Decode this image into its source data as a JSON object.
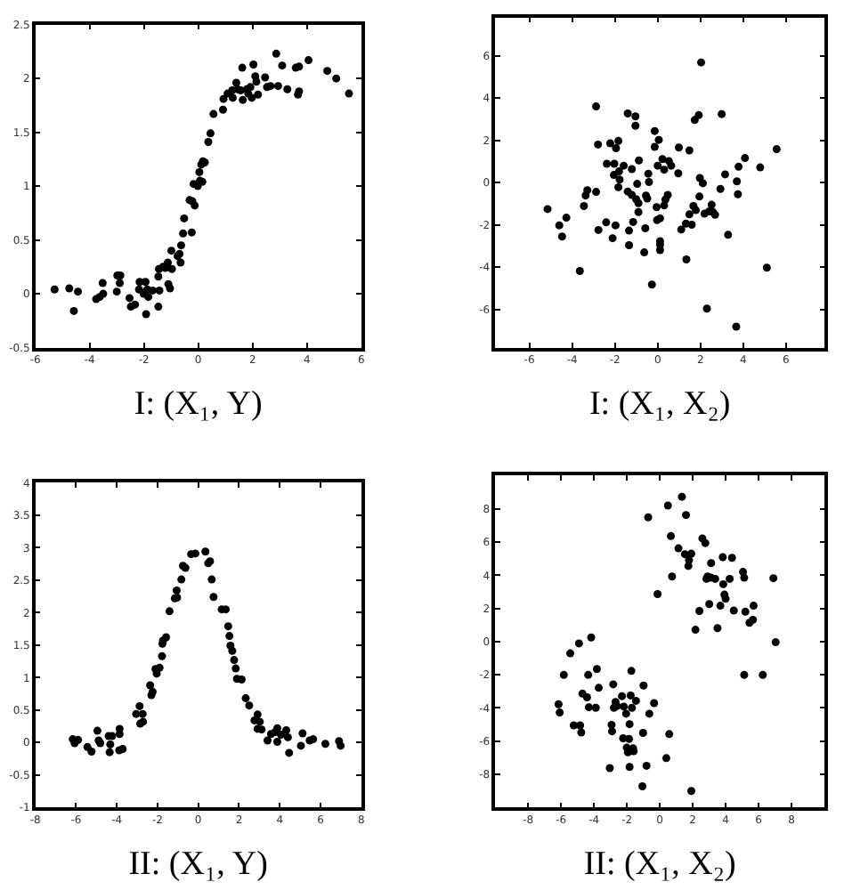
{
  "chart_data": [
    {
      "type": "scatter",
      "xlabel": "I: (X₁, Y)",
      "marker": "circle",
      "color": "#000000",
      "grid": false,
      "xlim": [
        -6,
        6
      ],
      "ylim": [
        -0.5,
        2.5
      ],
      "xticks": [
        -6,
        -4,
        -2,
        0,
        2,
        4,
        6
      ],
      "yticks": [
        -0.5,
        0,
        0.5,
        1,
        1.5,
        2,
        2.5
      ],
      "x": [
        -5.29,
        -4.75,
        -4.58,
        -4.43,
        -3.76,
        -3.63,
        -3.5,
        -3.52,
        -3.0,
        -2.98,
        -2.87,
        -2.89,
        -2.53,
        -2.48,
        -2.33,
        -2.18,
        -2.16,
        -2.01,
        -1.94,
        -1.92,
        -1.84,
        -1.88,
        -1.68,
        -1.47,
        -1.43,
        -1.47,
        -1.45,
        -1.3,
        -1.21,
        -1.12,
        -1.1,
        -1.04,
        -0.97,
        -0.99,
        -0.76,
        -0.65,
        -0.69,
        -0.63,
        -0.56,
        -0.52,
        -0.24,
        -0.32,
        -0.22,
        -0.17,
        -0.13,
        -0.02,
        0.06,
        0.15,
        0.04,
        0.11,
        0.17,
        0.24,
        0.37,
        0.45,
        0.56,
        0.91,
        0.93,
        1.08,
        1.25,
        1.27,
        1.4,
        1.45,
        1.56,
        1.62,
        1.64,
        1.79,
        1.84,
        1.92,
        1.97,
        2.03,
        2.1,
        2.14,
        2.2,
        2.46,
        2.53,
        2.66,
        2.87,
        2.94,
        3.09,
        3.28,
        3.59,
        3.71,
        3.67,
        3.71,
        4.06,
        4.75,
        5.08,
        5.55
      ],
      "values": [
        0.04,
        0.05,
        -0.16,
        0.02,
        -0.05,
        -0.03,
        0,
        0.1,
        0.02,
        0.17,
        0.17,
        0.1,
        -0.04,
        -0.12,
        -0.1,
        0.04,
        0.11,
        0,
        0.11,
        -0.19,
        -0.03,
        0.04,
        0.03,
        -0.12,
        0.03,
        0.16,
        0.23,
        0.25,
        0.24,
        0.29,
        0.09,
        0.05,
        0.23,
        0.4,
        0.35,
        0.29,
        0.37,
        0.45,
        0.56,
        0.7,
        0.57,
        0.87,
        0.86,
        1.02,
        0.82,
        1.0,
        1.05,
        1.04,
        1.13,
        1.2,
        1.23,
        1.22,
        1.41,
        1.49,
        1.67,
        1.71,
        1.81,
        1.86,
        1.89,
        1.82,
        1.96,
        1.9,
        1.89,
        2.1,
        1.8,
        1.9,
        1.86,
        1.92,
        1.82,
        2.13,
        2.02,
        1.97,
        1.85,
        2.01,
        1.92,
        1.93,
        2.23,
        1.93,
        2.12,
        1.9,
        2.1,
        2.11,
        1.85,
        1.88,
        2.17,
        2.07,
        2.0,
        1.86
      ]
    },
    {
      "type": "scatter",
      "xlabel": "I: (X₁, X₂)",
      "marker": "circle",
      "color": "#000000",
      "grid": false,
      "xlim": [
        -7.6,
        7.8
      ],
      "ylim": [
        -7.8,
        7.8
      ],
      "xticks": [
        -6,
        -4,
        -2,
        0,
        2,
        4,
        6
      ],
      "yticks": [
        -6,
        -4,
        -2,
        0,
        2,
        4,
        6
      ],
      "x": [
        -5.15,
        -4.6,
        -4.47,
        -4.27,
        -3.64,
        -3.45,
        -3.37,
        -3.29,
        -2.88,
        -2.88,
        -2.79,
        -2.77,
        -2.41,
        -2.38,
        -2.22,
        -2.11,
        -2.05,
        -2.03,
        -1.97,
        -1.95,
        -1.84,
        -1.81,
        -1.84,
        -1.78,
        -1.59,
        -1.4,
        -1.4,
        -1.34,
        -1.34,
        -1.21,
        -1.21,
        -1.15,
        -1.04,
        -1.04,
        -1.01,
        -0.96,
        -0.9,
        -0.88,
        -0.9,
        -0.63,
        -0.58,
        -0.55,
        -0.49,
        -0.41,
        -0.44,
        -0.27,
        -0.14,
        -0.14,
        -0.05,
        -0.03,
        0,
        0.05,
        0.11,
        0.11,
        0.11,
        0.11,
        0.22,
        0.3,
        0.3,
        0.36,
        0.47,
        0.52,
        0.63,
        0.96,
        0.99,
        1.1,
        1.32,
        1.34,
        1.48,
        1.48,
        1.59,
        1.67,
        1.73,
        1.78,
        1.92,
        1.95,
        1.97,
        2.03,
        2.11,
        2.19,
        2.3,
        2.41,
        2.52,
        2.58,
        2.68,
        2.93,
        2.99,
        3.15,
        3.29,
        3.7,
        3.75,
        3.78,
        3.67,
        4.08,
        4.79,
        5.1,
        5.56
      ],
      "values": [
        -1.25,
        -2.02,
        -2.55,
        -1.66,
        -4.18,
        -1.11,
        -0.61,
        -0.36,
        3.6,
        -0.44,
        1.8,
        -2.24,
        -1.88,
        0.89,
        1.86,
        -2.63,
        0.36,
        0.89,
        -2.02,
        1.63,
        1.97,
        0.53,
        -0.22,
        0.14,
        0.8,
        3.27,
        -0.42,
        -2.96,
        -2.27,
        0.64,
        -0.58,
        -1.86,
        3.13,
        2.69,
        -0.78,
        -0.06,
        -0.97,
        1.05,
        -1.39,
        -3.3,
        -2.16,
        -0.61,
        -0.75,
        0.03,
        0.42,
        -4.82,
        2.44,
        1.69,
        -1.16,
        -1.77,
        0.8,
        2.02,
        -1.69,
        -2.77,
        -2.94,
        -3.19,
        1.11,
        0.61,
        -1.08,
        -0.8,
        -0.58,
        1.02,
        0.8,
        0.44,
        1.66,
        -2.22,
        -1.94,
        -3.63,
        1.52,
        -1.5,
        -1.99,
        -1.11,
        2.96,
        -1.3,
        3.19,
        -0.66,
        0.22,
        5.68,
        -0.03,
        -1.47,
        -5.96,
        -1.36,
        -1.05,
        -1.39,
        -1.52,
        -0.3,
        3.24,
        0.39,
        -2.47,
        0.06,
        -0.55,
        0.75,
        -6.81,
        1.16,
        0.72,
        -4.02,
        1.58
      ]
    },
    {
      "type": "scatter",
      "xlabel": "II: (X₁, Y)",
      "marker": "circle",
      "color": "#000000",
      "grid": false,
      "xlim": [
        -8,
        8
      ],
      "ylim": [
        -1,
        4
      ],
      "xticks": [
        -8,
        -6,
        -4,
        -2,
        0,
        2,
        4,
        6,
        8
      ],
      "yticks": [
        -1,
        -0.5,
        0,
        0.5,
        1,
        1.5,
        2,
        2.5,
        3,
        3.5,
        4
      ],
      "x": [
        -6.16,
        -6.07,
        -5.9,
        -5.44,
        -5.24,
        -4.95,
        -4.89,
        -4.81,
        -4.4,
        -4.35,
        -4.32,
        -4.23,
        -3.86,
        -3.86,
        -3.88,
        -3.71,
        -3.05,
        -2.88,
        -2.85,
        -2.73,
        -2.71,
        -2.36,
        -2.3,
        -2.24,
        -2.1,
        -2.04,
        -1.9,
        -1.78,
        -1.76,
        -1.73,
        -1.58,
        -1.41,
        -1.15,
        -1.04,
        -1.06,
        -0.83,
        -0.75,
        -0.63,
        -0.35,
        -0.14,
        0.35,
        0.49,
        0.58,
        0.66,
        0.75,
        1.15,
        1.35,
        1.47,
        1.53,
        1.58,
        1.67,
        1.76,
        1.84,
        1.9,
        2.13,
        2.33,
        2.5,
        2.76,
        2.91,
        3.02,
        2.91,
        3.11,
        3.4,
        3.57,
        3.77,
        3.88,
        3.88,
        4.06,
        4.32,
        4.4,
        4.46,
        5.04,
        5.12,
        5.47,
        5.64,
        6.24,
        6.91,
        6.99
      ],
      "values": [
        0.05,
        -0.01,
        0.04,
        -0.07,
        -0.14,
        0.18,
        0.03,
        -0.01,
        0.1,
        -0.15,
        -0.03,
        0.1,
        0.21,
        0.13,
        -0.12,
        -0.1,
        0.44,
        0.56,
        0.29,
        0.44,
        0.32,
        0.88,
        0.73,
        0.78,
        1.13,
        1.06,
        1.15,
        1.33,
        1.52,
        1.57,
        1.62,
        2.02,
        2.22,
        2.23,
        2.34,
        2.51,
        2.72,
        2.69,
        2.9,
        2.91,
        2.94,
        2.76,
        2.79,
        2.51,
        2.24,
        2.05,
        2.05,
        1.79,
        1.64,
        1.49,
        1.41,
        1.27,
        1.14,
        0.98,
        0.97,
        0.68,
        0.57,
        0.34,
        0.43,
        0.32,
        0.21,
        0.2,
        0.03,
        0.13,
        0.16,
        0.22,
        0.01,
        0.12,
        0.19,
        0.08,
        -0.16,
        -0.05,
        0.14,
        0.03,
        0.05,
        -0.02,
        0.02,
        -0.05
      ]
    },
    {
      "type": "scatter",
      "xlabel": "II: (X₁, X₂)",
      "marker": "circle",
      "color": "#000000",
      "grid": false,
      "xlim": [
        -10,
        10
      ],
      "ylim": [
        -10,
        10
      ],
      "xticks": [
        -8,
        -6,
        -4,
        -2,
        0,
        2,
        4,
        6,
        8
      ],
      "yticks": [
        -8,
        -6,
        -4,
        -2,
        0,
        2,
        4,
        6,
        8
      ],
      "x": [
        -0.71,
        -0.14,
        0.49,
        0.67,
        0.74,
        1.13,
        1.34,
        1.52,
        1.59,
        1.73,
        1.77,
        1.91,
        2.16,
        2.4,
        2.58,
        2.76,
        2.83,
        2.9,
        3.0,
        3.11,
        3.11,
        3.36,
        3.5,
        3.67,
        3.82,
        3.85,
        3.92,
        3.99,
        4.24,
        4.38,
        4.49,
        5.05,
        5.12,
        5.12,
        5.19,
        5.44,
        5.65,
        5.69,
        6.25,
        6.89,
        7.03,
        -6.15,
        -6.08,
        -5.83,
        -5.44,
        -5.23,
        -4.91,
        -4.84,
        -4.77,
        -4.7,
        -4.42,
        -4.35,
        -4.31,
        -4.17,
        -3.89,
        -3.82,
        -3.71,
        -3.04,
        -2.93,
        -2.9,
        -2.83,
        -2.79,
        -2.69,
        -2.61,
        -2.3,
        -2.23,
        -2.19,
        -2.05,
        -2.01,
        -1.94,
        -1.87,
        -1.84,
        -1.84,
        -1.77,
        -1.73,
        -1.7,
        -1.63,
        -1.45,
        -1.59,
        -1.06,
        -1.02,
        -0.99,
        -0.81,
        -0.64,
        -0.35,
        0.39,
        0.57,
        1.91
      ],
      "values": [
        7.49,
        2.86,
        8.2,
        6.36,
        3.92,
        5.62,
        8.73,
        5.27,
        7.63,
        4.56,
        4.91,
        5.3,
        0.71,
        1.84,
        6.22,
        5.94,
        3.78,
        3.92,
        2.26,
        4.73,
        3.85,
        3.78,
        0.81,
        2.16,
        5.09,
        3.46,
        2.83,
        2.58,
        3.78,
        5.05,
        1.87,
        4.2,
        3.85,
        -2.01,
        1.8,
        1.13,
        1.31,
        2.16,
        -2.01,
        3.82,
        -0.04,
        -3.78,
        -4.28,
        -2.01,
        -0.71,
        -5.05,
        -0.11,
        -5.05,
        -5.48,
        -3.14,
        -3.36,
        -2.01,
        -3.96,
        0.25,
        -3.99,
        -1.66,
        -2.79,
        -7.63,
        -5.02,
        -5.41,
        -2.58,
        -3.99,
        -3.64,
        -3.89,
        -3.29,
        -5.83,
        -3.92,
        -4.35,
        -6.4,
        -6.68,
        -5.87,
        -4.98,
        -7.56,
        -3.25,
        -1.77,
        -3.99,
        -6.43,
        -3.57,
        -6.61,
        -8.73,
        -5.51,
        -2.65,
        -7.49,
        -4.35,
        -3.71,
        -7.03,
        -5.58,
        -9.01
      ]
    }
  ]
}
